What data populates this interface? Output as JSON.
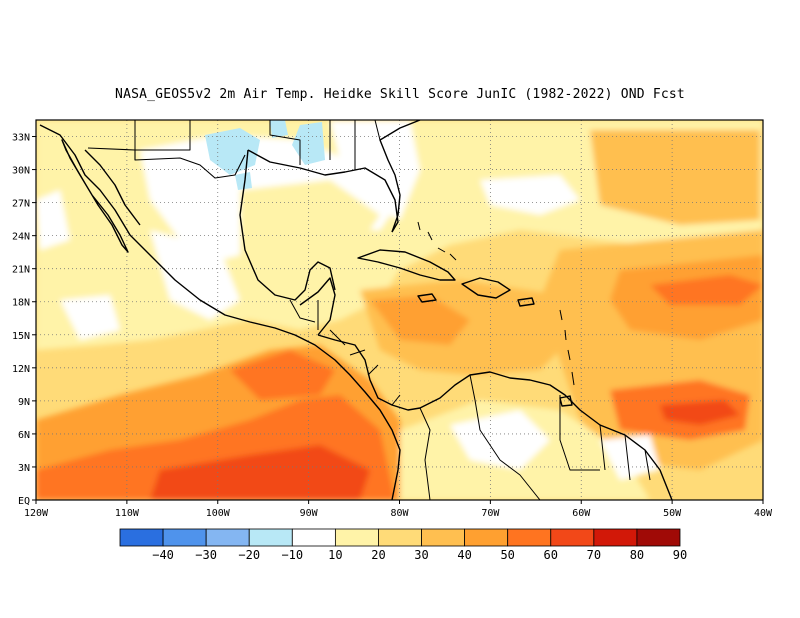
{
  "title": "NASA_GEOS5v2  2m Air Temp. Heidke Skill Score JunIC (1982-2022) OND Fcst",
  "axes": {
    "lat_labels": [
      "EQ",
      "3N",
      "6N",
      "9N",
      "12N",
      "15N",
      "18N",
      "21N",
      "24N",
      "27N",
      "30N",
      "33N"
    ],
    "lat_values": [
      0,
      3,
      6,
      9,
      12,
      15,
      18,
      21,
      24,
      27,
      30,
      33
    ],
    "lon_labels": [
      "120W",
      "110W",
      "100W",
      "90W",
      "80W",
      "70W",
      "60W",
      "50W",
      "40W"
    ],
    "lon_values": [
      -120,
      -110,
      -100,
      -90,
      -80,
      -70,
      -60,
      -50,
      -40
    ],
    "lon_range": [
      -120,
      -40
    ],
    "lat_range": [
      0,
      34.5
    ],
    "grid": "dotted"
  },
  "colorbar": {
    "labels": [
      "-40",
      "-30",
      "-20",
      "-10",
      "10",
      "20",
      "30",
      "40",
      "50",
      "60",
      "70",
      "80",
      "90"
    ],
    "colors": [
      "#2a6fe0",
      "#4f93ec",
      "#84b6f2",
      "#b8e8f6",
      "#ffffff",
      "#fff3a8",
      "#ffdb78",
      "#ffbf50",
      "#ffa030",
      "#ff7420",
      "#f24818",
      "#d21808",
      "#a00a06"
    ]
  },
  "map_fields": {
    "background_level": "20-30",
    "regions": [
      {
        "name": "eastern-pacific-warm-pool",
        "level": "50-70",
        "color": "#ff7420"
      },
      {
        "name": "equatorial-atlantic",
        "level": "40-60",
        "color": "#ffa030"
      },
      {
        "name": "caribbean-sea",
        "level": "40-50",
        "color": "#ffbf50"
      },
      {
        "name": "gulf-of-mexico",
        "level": "10-20",
        "color": "#fff3a8"
      },
      {
        "name": "southern-us",
        "level": "-10-10",
        "color": "#ffffff"
      },
      {
        "name": "texas-new-mexico",
        "level": "-20--10",
        "color": "#b8e8f6"
      }
    ]
  }
}
